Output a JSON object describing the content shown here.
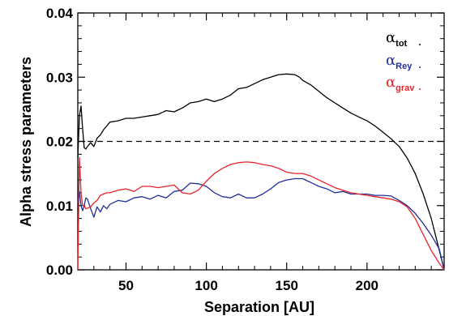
{
  "chart_data": {
    "type": "line",
    "title": "",
    "xlabel": "Separation [AU]",
    "ylabel": "Alpha stress parameters",
    "xlim": [
      20,
      248
    ],
    "ylim": [
      0.0,
      0.04
    ],
    "xticks": [
      50,
      100,
      150,
      200
    ],
    "yticks": [
      0.0,
      0.01,
      0.02,
      0.03,
      0.04
    ],
    "xtick_labels": [
      "50",
      "100",
      "150",
      "200"
    ],
    "ytick_labels": [
      "0.00",
      "0.01",
      "0.02",
      "0.03",
      "0.04"
    ],
    "reference_line": {
      "y": 0.02,
      "style": "dashed",
      "color": "#000000"
    },
    "legend": {
      "position": "top-right",
      "entries": [
        {
          "symbol": "α",
          "subscript": "tot",
          "color": "#000000"
        },
        {
          "symbol": "α",
          "subscript": "Rey",
          "color": "#1f2f9a"
        },
        {
          "symbol": "α",
          "subscript": "grav",
          "color": "#e8242a"
        }
      ]
    },
    "series": [
      {
        "key": "tot",
        "color": "#000000",
        "x": [
          20,
          21,
          22,
          23,
          24,
          25,
          26,
          28,
          30,
          32,
          34,
          36,
          38,
          40,
          45,
          50,
          55,
          60,
          65,
          70,
          75,
          80,
          85,
          90,
          95,
          100,
          105,
          110,
          115,
          120,
          125,
          130,
          135,
          140,
          145,
          150,
          155,
          158,
          160,
          165,
          170,
          175,
          180,
          185,
          190,
          195,
          200,
          205,
          210,
          215,
          220,
          225,
          230,
          235,
          240,
          245,
          248
        ],
        "y": [
          0.0175,
          0.024,
          0.0255,
          0.022,
          0.019,
          0.0188,
          0.0192,
          0.0198,
          0.0192,
          0.0205,
          0.021,
          0.0218,
          0.0224,
          0.023,
          0.0232,
          0.0236,
          0.0236,
          0.0238,
          0.024,
          0.0242,
          0.0248,
          0.0246,
          0.0252,
          0.026,
          0.0262,
          0.0266,
          0.0262,
          0.0266,
          0.0272,
          0.0282,
          0.0284,
          0.029,
          0.0296,
          0.03,
          0.0304,
          0.0305,
          0.0304,
          0.03,
          0.0295,
          0.0288,
          0.0278,
          0.0268,
          0.026,
          0.0252,
          0.0244,
          0.0238,
          0.0232,
          0.0224,
          0.0214,
          0.0204,
          0.0192,
          0.0174,
          0.015,
          0.0118,
          0.008,
          0.003,
          0.0
        ]
      },
      {
        "key": "Rey",
        "color": "#1f2f9a",
        "x": [
          20,
          21,
          22,
          23,
          24,
          25,
          26,
          28,
          30,
          32,
          34,
          36,
          38,
          40,
          45,
          50,
          55,
          60,
          65,
          70,
          75,
          80,
          85,
          90,
          95,
          100,
          105,
          110,
          115,
          120,
          125,
          130,
          135,
          140,
          145,
          150,
          155,
          160,
          165,
          170,
          175,
          180,
          185,
          190,
          195,
          200,
          205,
          210,
          215,
          220,
          225,
          230,
          235,
          240,
          245,
          248
        ],
        "y": [
          0.0105,
          0.0122,
          0.01,
          0.0092,
          0.01,
          0.0112,
          0.011,
          0.0095,
          0.0082,
          0.0098,
          0.009,
          0.01,
          0.0095,
          0.0102,
          0.0108,
          0.0106,
          0.0112,
          0.0114,
          0.011,
          0.0116,
          0.0112,
          0.0122,
          0.0124,
          0.0135,
          0.0134,
          0.013,
          0.012,
          0.0114,
          0.0112,
          0.0118,
          0.0112,
          0.0112,
          0.0118,
          0.0126,
          0.0136,
          0.014,
          0.0142,
          0.0142,
          0.0136,
          0.013,
          0.0126,
          0.012,
          0.0122,
          0.0118,
          0.0118,
          0.0118,
          0.0116,
          0.0116,
          0.0115,
          0.0108,
          0.01,
          0.0088,
          0.0072,
          0.0054,
          0.0032,
          0.0
        ]
      },
      {
        "key": "grav",
        "color": "#e8242a",
        "x": [
          20,
          21,
          22,
          23,
          24,
          25,
          26,
          28,
          30,
          32,
          34,
          36,
          38,
          40,
          45,
          50,
          55,
          60,
          65,
          70,
          75,
          80,
          85,
          90,
          95,
          100,
          105,
          110,
          115,
          120,
          125,
          130,
          135,
          140,
          145,
          150,
          155,
          160,
          165,
          170,
          175,
          180,
          185,
          190,
          195,
          200,
          205,
          210,
          215,
          220,
          225,
          230,
          235,
          240,
          245,
          248
        ],
        "y": [
          0.0,
          0.0175,
          0.012,
          0.01,
          0.01,
          0.0095,
          0.0096,
          0.0098,
          0.0104,
          0.0108,
          0.0116,
          0.0118,
          0.012,
          0.012,
          0.0124,
          0.0126,
          0.0122,
          0.013,
          0.013,
          0.0128,
          0.013,
          0.0132,
          0.012,
          0.0118,
          0.0124,
          0.0138,
          0.015,
          0.0158,
          0.0164,
          0.0167,
          0.0168,
          0.0167,
          0.0164,
          0.0162,
          0.0158,
          0.0152,
          0.015,
          0.015,
          0.0146,
          0.014,
          0.0134,
          0.0128,
          0.0124,
          0.012,
          0.0118,
          0.0116,
          0.0114,
          0.0112,
          0.011,
          0.0106,
          0.0098,
          0.008,
          0.0055,
          0.003,
          0.001,
          0.0
        ]
      }
    ]
  }
}
